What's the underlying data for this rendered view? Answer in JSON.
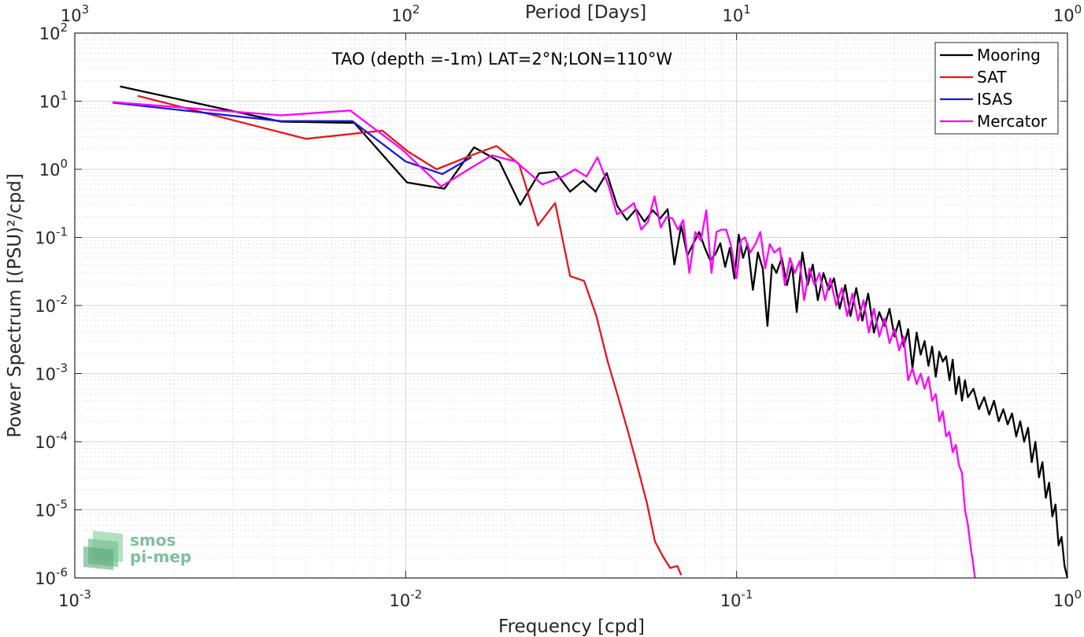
{
  "chart_data": {
    "type": "line",
    "title": "TAO (depth =-1m) LAT=2°N;LON=110°W",
    "xlabel": "Frequency [cpd]",
    "ylabel": "Power Spectrum [(PSU)²/cpd]",
    "top_xlabel": "Period [Days]",
    "x_scale": "log",
    "y_scale": "log",
    "xlim": [
      0.001,
      1
    ],
    "ylim": [
      1e-06,
      100
    ],
    "grid": true,
    "legend_position": "top-right",
    "x_ticks": [
      {
        "value": 0.001,
        "base": "10",
        "exp": "-3"
      },
      {
        "value": 0.01,
        "base": "10",
        "exp": "-2"
      },
      {
        "value": 0.1,
        "base": "10",
        "exp": "-1"
      },
      {
        "value": 1,
        "base": "10",
        "exp": "0"
      }
    ],
    "top_ticks": [
      {
        "value": 0.001,
        "base": "10",
        "exp": "3"
      },
      {
        "value": 0.01,
        "base": "10",
        "exp": "2"
      },
      {
        "value": 0.1,
        "base": "10",
        "exp": "1"
      },
      {
        "value": 1,
        "base": "10",
        "exp": "0"
      }
    ],
    "y_ticks": [
      {
        "value": 100,
        "base": "10",
        "exp": "2"
      },
      {
        "value": 10,
        "base": "10",
        "exp": "1"
      },
      {
        "value": 1,
        "base": "10",
        "exp": "0"
      },
      {
        "value": 0.1,
        "base": "10",
        "exp": "-1"
      },
      {
        "value": 0.01,
        "base": "10",
        "exp": "-2"
      },
      {
        "value": 0.001,
        "base": "10",
        "exp": "-3"
      },
      {
        "value": 0.0001,
        "base": "10",
        "exp": "-4"
      },
      {
        "value": 1e-05,
        "base": "10",
        "exp": "-5"
      },
      {
        "value": 1e-06,
        "base": "10",
        "exp": "-6"
      }
    ],
    "series": [
      {
        "name": "Mooring",
        "color": "#000000",
        "points": [
          [
            0.00137,
            16.5
          ],
          [
            0.0042,
            5.0
          ],
          [
            0.007,
            4.8
          ],
          [
            0.0101,
            0.64
          ],
          [
            0.0131,
            0.52
          ],
          [
            0.0161,
            2.1
          ],
          [
            0.0192,
            1.3
          ],
          [
            0.0222,
            0.3
          ],
          [
            0.0253,
            0.87
          ],
          [
            0.0283,
            0.92
          ],
          [
            0.0314,
            0.47
          ],
          [
            0.0344,
            0.68
          ],
          [
            0.0375,
            0.47
          ],
          [
            0.0405,
            0.88
          ],
          [
            0.0436,
            0.29
          ],
          [
            0.0466,
            0.18
          ],
          [
            0.0497,
            0.26
          ],
          [
            0.0527,
            0.17
          ],
          [
            0.0558,
            0.25
          ],
          [
            0.0588,
            0.19
          ],
          [
            0.0619,
            0.26
          ],
          [
            0.0649,
            0.04
          ],
          [
            0.068,
            0.15
          ],
          [
            0.071,
            0.054
          ],
          [
            0.0741,
            0.082
          ],
          [
            0.0771,
            0.12
          ],
          [
            0.0802,
            0.07
          ],
          [
            0.0832,
            0.046
          ],
          [
            0.0863,
            0.057
          ],
          [
            0.0893,
            0.082
          ],
          [
            0.0924,
            0.037
          ],
          [
            0.0954,
            0.07
          ],
          [
            0.0985,
            0.025
          ],
          [
            0.1015,
            0.11
          ],
          [
            0.1046,
            0.05
          ],
          [
            0.108,
            0.08
          ],
          [
            0.112,
            0.017
          ],
          [
            0.116,
            0.06
          ],
          [
            0.12,
            0.035
          ],
          [
            0.124,
            0.005
          ],
          [
            0.128,
            0.04
          ],
          [
            0.132,
            0.03
          ],
          [
            0.137,
            0.05
          ],
          [
            0.142,
            0.02
          ],
          [
            0.147,
            0.04
          ],
          [
            0.152,
            0.008
          ],
          [
            0.158,
            0.06
          ],
          [
            0.164,
            0.02
          ],
          [
            0.17,
            0.04
          ],
          [
            0.176,
            0.012
          ],
          [
            0.183,
            0.03
          ],
          [
            0.19,
            0.017
          ],
          [
            0.197,
            0.025
          ],
          [
            0.205,
            0.009
          ],
          [
            0.213,
            0.02
          ],
          [
            0.221,
            0.007
          ],
          [
            0.23,
            0.018
          ],
          [
            0.24,
            0.006
          ],
          [
            0.25,
            0.015
          ],
          [
            0.26,
            0.004
          ],
          [
            0.27,
            0.008
          ],
          [
            0.28,
            0.005
          ],
          [
            0.29,
            0.009
          ],
          [
            0.3,
            0.0035
          ],
          [
            0.31,
            0.006
          ],
          [
            0.32,
            0.0025
          ],
          [
            0.33,
            0.0045
          ],
          [
            0.34,
            0.0012
          ],
          [
            0.35,
            0.004
          ],
          [
            0.36,
            0.0019
          ],
          [
            0.37,
            0.003
          ],
          [
            0.38,
            0.0013
          ],
          [
            0.39,
            0.0025
          ],
          [
            0.4,
            0.0009
          ],
          [
            0.41,
            0.0021
          ],
          [
            0.42,
            0.0015
          ],
          [
            0.43,
            0.0018
          ],
          [
            0.44,
            0.0008
          ],
          [
            0.45,
            0.0016
          ],
          [
            0.46,
            0.0005
          ],
          [
            0.47,
            0.0009
          ],
          [
            0.48,
            0.0004
          ],
          [
            0.49,
            0.0008
          ],
          [
            0.5,
            0.00045
          ],
          [
            0.52,
            0.0006
          ],
          [
            0.54,
            0.0003
          ],
          [
            0.56,
            0.00045
          ],
          [
            0.58,
            0.00025
          ],
          [
            0.6,
            0.0004
          ],
          [
            0.62,
            0.0002
          ],
          [
            0.64,
            0.0003
          ],
          [
            0.66,
            0.00018
          ],
          [
            0.68,
            0.00026
          ],
          [
            0.7,
            0.00012
          ],
          [
            0.72,
            0.0002
          ],
          [
            0.74,
            0.0001
          ],
          [
            0.76,
            0.00016
          ],
          [
            0.78,
            5e-05
          ],
          [
            0.8,
            0.0001
          ],
          [
            0.82,
            3e-05
          ],
          [
            0.84,
            5e-05
          ],
          [
            0.86,
            1.5e-05
          ],
          [
            0.88,
            2.5e-05
          ],
          [
            0.9,
            8e-06
          ],
          [
            0.92,
            1.2e-05
          ],
          [
            0.94,
            3e-06
          ],
          [
            0.96,
            4e-06
          ],
          [
            0.98,
            1.5e-06
          ],
          [
            1.0,
            1e-06
          ]
        ]
      },
      {
        "name": "SAT",
        "color": "#e8141b",
        "points": [
          [
            0.00155,
            12.0
          ],
          [
            0.005,
            2.8
          ],
          [
            0.0085,
            3.7
          ],
          [
            0.0102,
            1.8
          ],
          [
            0.0124,
            1.0
          ],
          [
            0.0158,
            1.6
          ],
          [
            0.0188,
            2.2
          ],
          [
            0.022,
            1.2
          ],
          [
            0.0251,
            0.15
          ],
          [
            0.0283,
            0.32
          ],
          [
            0.0314,
            0.027
          ],
          [
            0.0346,
            0.023
          ],
          [
            0.0377,
            0.007
          ],
          [
            0.0408,
            0.0015
          ],
          [
            0.044,
            0.00043
          ],
          [
            0.0472,
            0.00013
          ],
          [
            0.0503,
            4.1e-05
          ],
          [
            0.0535,
            1.3e-05
          ],
          [
            0.0567,
            3.4e-06
          ],
          [
            0.0598,
            2.1e-06
          ],
          [
            0.063,
            1.4e-06
          ],
          [
            0.0662,
            1.5e-06
          ],
          [
            0.068,
            1.1e-06
          ]
        ]
      },
      {
        "name": "ISAS",
        "color": "#1b16e0",
        "points": [
          [
            0.0013,
            9.5
          ],
          [
            0.0042,
            5.1
          ],
          [
            0.0069,
            5.1
          ],
          [
            0.01,
            1.3
          ],
          [
            0.0129,
            0.85
          ],
          [
            0.0158,
            1.5
          ]
        ]
      },
      {
        "name": "Mercator",
        "color": "#ff00ff",
        "points": [
          [
            0.0013,
            9.7
          ],
          [
            0.0042,
            6.2
          ],
          [
            0.0068,
            7.3
          ],
          [
            0.0097,
            2.0
          ],
          [
            0.0128,
            0.56
          ],
          [
            0.0155,
            1.0
          ],
          [
            0.0182,
            1.6
          ],
          [
            0.0215,
            1.3
          ],
          [
            0.0259,
            0.6
          ],
          [
            0.0301,
            0.8
          ],
          [
            0.0325,
            1.0
          ],
          [
            0.0352,
            0.78
          ],
          [
            0.038,
            1.5
          ],
          [
            0.041,
            0.58
          ],
          [
            0.0435,
            0.22
          ],
          [
            0.046,
            0.25
          ],
          [
            0.049,
            0.32
          ],
          [
            0.0515,
            0.13
          ],
          [
            0.054,
            0.17
          ],
          [
            0.0565,
            0.4
          ],
          [
            0.059,
            0.14
          ],
          [
            0.0615,
            0.2
          ],
          [
            0.064,
            0.19
          ],
          [
            0.0665,
            0.13
          ],
          [
            0.069,
            0.18
          ],
          [
            0.072,
            0.03
          ],
          [
            0.075,
            0.12
          ],
          [
            0.078,
            0.09
          ],
          [
            0.081,
            0.25
          ],
          [
            0.084,
            0.03
          ],
          [
            0.087,
            0.12
          ],
          [
            0.09,
            0.13
          ],
          [
            0.093,
            0.13
          ],
          [
            0.096,
            0.08
          ],
          [
            0.1,
            0.025
          ],
          [
            0.103,
            0.09
          ],
          [
            0.106,
            0.1
          ],
          [
            0.11,
            0.06
          ],
          [
            0.114,
            0.08
          ],
          [
            0.118,
            0.12
          ],
          [
            0.122,
            0.035
          ],
          [
            0.126,
            0.08
          ],
          [
            0.13,
            0.06
          ],
          [
            0.135,
            0.07
          ],
          [
            0.14,
            0.02
          ],
          [
            0.145,
            0.05
          ],
          [
            0.15,
            0.03
          ],
          [
            0.155,
            0.045
          ],
          [
            0.16,
            0.012
          ],
          [
            0.166,
            0.035
          ],
          [
            0.172,
            0.02
          ],
          [
            0.178,
            0.03
          ],
          [
            0.185,
            0.012
          ],
          [
            0.192,
            0.025
          ],
          [
            0.2,
            0.01
          ],
          [
            0.208,
            0.018
          ],
          [
            0.216,
            0.007
          ],
          [
            0.224,
            0.015
          ],
          [
            0.233,
            0.006
          ],
          [
            0.242,
            0.012
          ],
          [
            0.251,
            0.004
          ],
          [
            0.26,
            0.009
          ],
          [
            0.27,
            0.0035
          ],
          [
            0.28,
            0.0065
          ],
          [
            0.29,
            0.0028
          ],
          [
            0.3,
            0.0045
          ],
          [
            0.31,
            0.0022
          ],
          [
            0.32,
            0.0035
          ],
          [
            0.33,
            0.0008
          ],
          [
            0.34,
            0.0012
          ],
          [
            0.35,
            0.0007
          ],
          [
            0.36,
            0.001
          ],
          [
            0.37,
            0.0006
          ],
          [
            0.38,
            0.0009
          ],
          [
            0.39,
            0.0004
          ],
          [
            0.4,
            0.0005
          ],
          [
            0.41,
            0.0002
          ],
          [
            0.42,
            0.00028
          ],
          [
            0.43,
            0.00012
          ],
          [
            0.44,
            0.00014
          ],
          [
            0.45,
            7e-05
          ],
          [
            0.46,
            9e-05
          ],
          [
            0.47,
            4.5e-05
          ],
          [
            0.48,
            3.5e-05
          ],
          [
            0.49,
            1e-05
          ],
          [
            0.5,
            6e-06
          ],
          [
            0.51,
            2.8e-06
          ],
          [
            0.52,
            1.5e-06
          ],
          [
            0.525,
            1e-06
          ]
        ]
      }
    ]
  },
  "logo": {
    "line1": "smos",
    "line2": "pi-mep"
  }
}
